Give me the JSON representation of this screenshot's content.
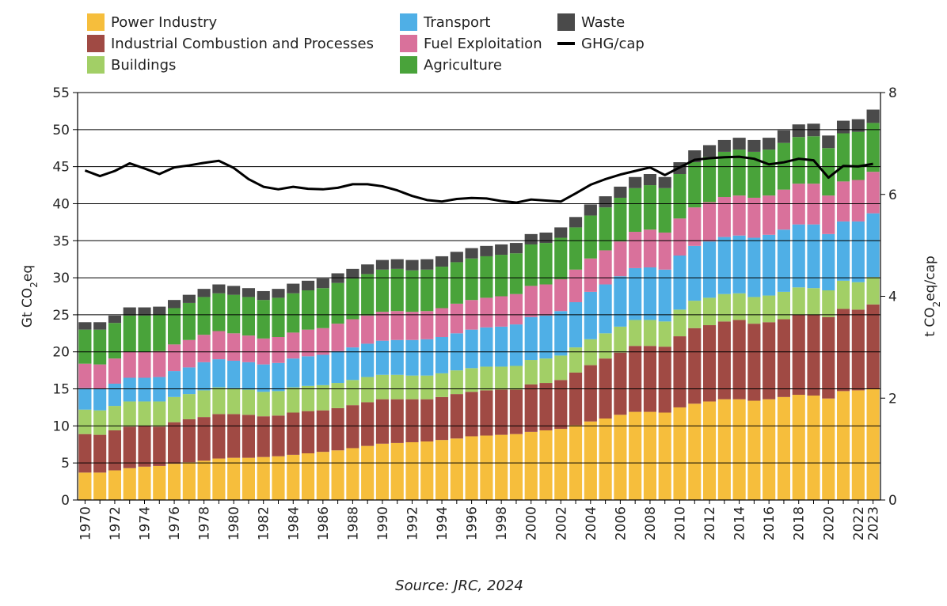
{
  "source": "Source: JRC, 2024",
  "legend": [
    {
      "label": "Power Industry",
      "color": "#F6BE3C",
      "kind": "box"
    },
    {
      "label": "Industrial Combustion and Processes",
      "color": "#A04A44",
      "kind": "box"
    },
    {
      "label": "Buildings",
      "color": "#A2CF66",
      "kind": "box"
    },
    {
      "label": "Transport",
      "color": "#4FAFE6",
      "kind": "box"
    },
    {
      "label": "Fuel Exploitation",
      "color": "#D9719B",
      "kind": "box"
    },
    {
      "label": "Agriculture",
      "color": "#49A33A",
      "kind": "box"
    },
    {
      "label": "Waste",
      "color": "#4A4A4A",
      "kind": "box"
    },
    {
      "label": "GHG/cap",
      "color": "#000000",
      "kind": "line"
    }
  ],
  "chart_data": {
    "type": "bar",
    "stacked": true,
    "xlabel": "",
    "ylabel": "Gt CO2eq",
    "y2label": "t CO2eq/cap",
    "ylim": [
      0,
      55
    ],
    "y2lim": [
      0,
      8
    ],
    "yticks": [
      0,
      5,
      10,
      15,
      20,
      25,
      30,
      35,
      40,
      45,
      50,
      55
    ],
    "y2ticks": [
      0,
      2,
      4,
      6,
      8
    ],
    "grid": "horizontal",
    "legend_position": "top",
    "categories": [
      "1970",
      "1971",
      "1972",
      "1973",
      "1974",
      "1975",
      "1976",
      "1977",
      "1978",
      "1979",
      "1980",
      "1981",
      "1982",
      "1983",
      "1984",
      "1985",
      "1986",
      "1987",
      "1988",
      "1989",
      "1990",
      "1991",
      "1992",
      "1993",
      "1994",
      "1995",
      "1996",
      "1997",
      "1998",
      "1999",
      "2000",
      "2001",
      "2002",
      "2003",
      "2004",
      "2005",
      "2006",
      "2007",
      "2008",
      "2009",
      "2010",
      "2011",
      "2012",
      "2013",
      "2014",
      "2015",
      "2016",
      "2017",
      "2018",
      "2019",
      "2020",
      "2021",
      "2022",
      "2023"
    ],
    "tick_labels": [
      "1970",
      "1972",
      "1974",
      "1976",
      "1978",
      "1980",
      "1982",
      "1984",
      "1986",
      "1988",
      "1990",
      "1992",
      "1994",
      "1996",
      "1998",
      "2000",
      "2002",
      "2004",
      "2006",
      "2008",
      "2010",
      "2012",
      "2014",
      "2016",
      "2018",
      "2020",
      "2022",
      "2023"
    ],
    "series": [
      {
        "name": "Power Industry",
        "color": "#F6BE3C",
        "values": [
          3.7,
          3.7,
          4.0,
          4.3,
          4.5,
          4.6,
          4.9,
          5.1,
          5.3,
          5.6,
          5.7,
          5.7,
          5.8,
          5.9,
          6.1,
          6.3,
          6.5,
          6.7,
          7.0,
          7.3,
          7.6,
          7.7,
          7.8,
          7.9,
          8.1,
          8.3,
          8.6,
          8.7,
          8.8,
          8.9,
          9.2,
          9.4,
          9.6,
          10.1,
          10.6,
          11.0,
          11.5,
          11.9,
          11.9,
          11.8,
          12.5,
          13.0,
          13.3,
          13.6,
          13.6,
          13.4,
          13.6,
          13.9,
          14.2,
          14.1,
          13.7,
          14.7,
          14.8,
          15.0
        ]
      },
      {
        "name": "Industrial Combustion and Processes",
        "color": "#A04A44",
        "values": [
          5.2,
          5.1,
          5.4,
          5.6,
          5.5,
          5.3,
          5.6,
          5.8,
          5.9,
          6.0,
          5.9,
          5.8,
          5.5,
          5.5,
          5.7,
          5.7,
          5.6,
          5.7,
          5.8,
          5.9,
          6.0,
          5.9,
          5.8,
          5.7,
          5.8,
          6.0,
          6.0,
          6.1,
          6.1,
          6.0,
          6.4,
          6.4,
          6.6,
          7.1,
          7.6,
          8.1,
          8.4,
          8.9,
          8.9,
          8.9,
          9.6,
          10.2,
          10.3,
          10.5,
          10.7,
          10.4,
          10.4,
          10.5,
          10.8,
          10.9,
          11.0,
          11.1,
          10.9,
          11.4
        ]
      },
      {
        "name": "Buildings",
        "color": "#A2CF66",
        "values": [
          3.3,
          3.3,
          3.3,
          3.4,
          3.3,
          3.4,
          3.4,
          3.4,
          3.6,
          3.6,
          3.5,
          3.4,
          3.3,
          3.3,
          3.4,
          3.4,
          3.4,
          3.4,
          3.4,
          3.4,
          3.3,
          3.3,
          3.2,
          3.2,
          3.2,
          3.2,
          3.2,
          3.2,
          3.1,
          3.2,
          3.3,
          3.3,
          3.3,
          3.4,
          3.5,
          3.4,
          3.5,
          3.5,
          3.5,
          3.4,
          3.6,
          3.7,
          3.7,
          3.7,
          3.6,
          3.6,
          3.6,
          3.7,
          3.7,
          3.6,
          3.6,
          3.8,
          3.7,
          3.7
        ]
      },
      {
        "name": "Transport",
        "color": "#4FAFE6",
        "values": [
          2.9,
          2.9,
          3.0,
          3.2,
          3.2,
          3.3,
          3.5,
          3.6,
          3.8,
          3.8,
          3.7,
          3.7,
          3.7,
          3.8,
          3.9,
          4.0,
          4.1,
          4.3,
          4.4,
          4.5,
          4.6,
          4.7,
          4.8,
          4.9,
          4.9,
          5.0,
          5.2,
          5.3,
          5.4,
          5.6,
          5.8,
          5.8,
          6.0,
          6.1,
          6.4,
          6.6,
          6.8,
          7.0,
          7.1,
          7.0,
          7.3,
          7.4,
          7.6,
          7.7,
          7.8,
          8.0,
          8.2,
          8.4,
          8.5,
          8.6,
          7.6,
          8.0,
          8.2,
          8.6
        ]
      },
      {
        "name": "Fuel Exploitation",
        "color": "#D9719B",
        "values": [
          3.3,
          3.3,
          3.4,
          3.5,
          3.5,
          3.5,
          3.6,
          3.7,
          3.7,
          3.8,
          3.7,
          3.6,
          3.5,
          3.5,
          3.5,
          3.6,
          3.6,
          3.7,
          3.8,
          3.8,
          3.9,
          3.9,
          3.8,
          3.8,
          3.9,
          4.0,
          4.0,
          4.0,
          4.1,
          4.1,
          4.2,
          4.2,
          4.3,
          4.4,
          4.5,
          4.6,
          4.7,
          4.9,
          5.1,
          5.0,
          5.0,
          5.2,
          5.3,
          5.4,
          5.4,
          5.4,
          5.3,
          5.4,
          5.5,
          5.5,
          5.2,
          5.4,
          5.6,
          5.6
        ]
      },
      {
        "name": "Agriculture",
        "color": "#49A33A",
        "values": [
          4.6,
          4.7,
          4.8,
          4.9,
          4.9,
          4.9,
          4.9,
          5.0,
          5.1,
          5.1,
          5.2,
          5.2,
          5.2,
          5.3,
          5.3,
          5.3,
          5.4,
          5.5,
          5.5,
          5.6,
          5.7,
          5.7,
          5.6,
          5.6,
          5.6,
          5.6,
          5.6,
          5.6,
          5.6,
          5.5,
          5.6,
          5.6,
          5.6,
          5.7,
          5.8,
          5.8,
          5.9,
          5.9,
          6.0,
          6.0,
          6.0,
          6.1,
          6.1,
          6.1,
          6.2,
          6.2,
          6.2,
          6.3,
          6.3,
          6.4,
          6.4,
          6.5,
          6.5,
          6.6
        ]
      },
      {
        "name": "Waste",
        "color": "#4A4A4A",
        "values": [
          1.0,
          1.0,
          1.0,
          1.1,
          1.1,
          1.1,
          1.1,
          1.1,
          1.1,
          1.2,
          1.2,
          1.2,
          1.2,
          1.2,
          1.3,
          1.3,
          1.3,
          1.3,
          1.3,
          1.3,
          1.3,
          1.3,
          1.4,
          1.4,
          1.4,
          1.4,
          1.4,
          1.4,
          1.4,
          1.4,
          1.4,
          1.4,
          1.4,
          1.4,
          1.5,
          1.5,
          1.5,
          1.5,
          1.5,
          1.5,
          1.6,
          1.6,
          1.6,
          1.6,
          1.6,
          1.6,
          1.6,
          1.7,
          1.7,
          1.7,
          1.7,
          1.7,
          1.7,
          1.8
        ]
      }
    ],
    "line": {
      "name": "GHG/cap",
      "axis": "right",
      "color": "#000000",
      "values": [
        6.47,
        6.36,
        6.46,
        6.61,
        6.51,
        6.4,
        6.53,
        6.57,
        6.62,
        6.66,
        6.52,
        6.3,
        6.15,
        6.1,
        6.15,
        6.11,
        6.1,
        6.13,
        6.2,
        6.2,
        6.16,
        6.08,
        5.97,
        5.89,
        5.86,
        5.91,
        5.93,
        5.92,
        5.87,
        5.84,
        5.9,
        5.88,
        5.86,
        6.02,
        6.19,
        6.3,
        6.39,
        6.46,
        6.53,
        6.38,
        6.53,
        6.68,
        6.71,
        6.73,
        6.74,
        6.7,
        6.59,
        6.63,
        6.7,
        6.67,
        6.33,
        6.56,
        6.55,
        6.6
      ]
    }
  }
}
